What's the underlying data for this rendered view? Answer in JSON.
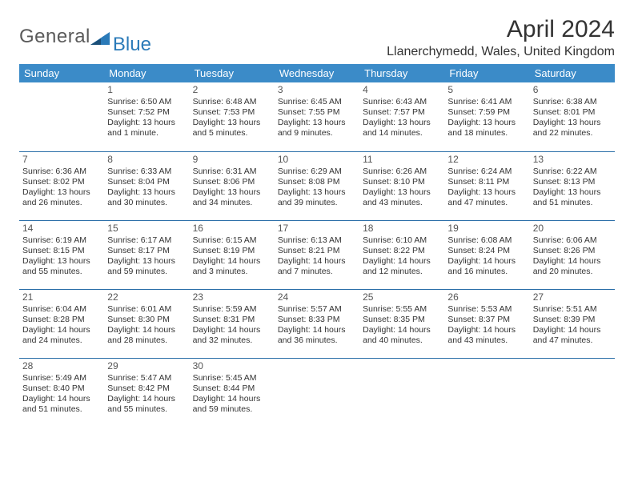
{
  "logo": {
    "part1": "General",
    "part2": "Blue"
  },
  "title": "April 2024",
  "location": "Llanerchymedd, Wales, United Kingdom",
  "colors": {
    "header_bg": "#3b8bc8",
    "header_text": "#ffffff",
    "row_border": "#2a6ea8",
    "text": "#333333",
    "logo_gray": "#5a5a5a",
    "logo_blue": "#2a7ab8"
  },
  "day_headers": [
    "Sunday",
    "Monday",
    "Tuesday",
    "Wednesday",
    "Thursday",
    "Friday",
    "Saturday"
  ],
  "weeks": [
    [
      null,
      {
        "n": "1",
        "sr": "Sunrise: 6:50 AM",
        "ss": "Sunset: 7:52 PM",
        "d1": "Daylight: 13 hours",
        "d2": "and 1 minute."
      },
      {
        "n": "2",
        "sr": "Sunrise: 6:48 AM",
        "ss": "Sunset: 7:53 PM",
        "d1": "Daylight: 13 hours",
        "d2": "and 5 minutes."
      },
      {
        "n": "3",
        "sr": "Sunrise: 6:45 AM",
        "ss": "Sunset: 7:55 PM",
        "d1": "Daylight: 13 hours",
        "d2": "and 9 minutes."
      },
      {
        "n": "4",
        "sr": "Sunrise: 6:43 AM",
        "ss": "Sunset: 7:57 PM",
        "d1": "Daylight: 13 hours",
        "d2": "and 14 minutes."
      },
      {
        "n": "5",
        "sr": "Sunrise: 6:41 AM",
        "ss": "Sunset: 7:59 PM",
        "d1": "Daylight: 13 hours",
        "d2": "and 18 minutes."
      },
      {
        "n": "6",
        "sr": "Sunrise: 6:38 AM",
        "ss": "Sunset: 8:01 PM",
        "d1": "Daylight: 13 hours",
        "d2": "and 22 minutes."
      }
    ],
    [
      {
        "n": "7",
        "sr": "Sunrise: 6:36 AM",
        "ss": "Sunset: 8:02 PM",
        "d1": "Daylight: 13 hours",
        "d2": "and 26 minutes."
      },
      {
        "n": "8",
        "sr": "Sunrise: 6:33 AM",
        "ss": "Sunset: 8:04 PM",
        "d1": "Daylight: 13 hours",
        "d2": "and 30 minutes."
      },
      {
        "n": "9",
        "sr": "Sunrise: 6:31 AM",
        "ss": "Sunset: 8:06 PM",
        "d1": "Daylight: 13 hours",
        "d2": "and 34 minutes."
      },
      {
        "n": "10",
        "sr": "Sunrise: 6:29 AM",
        "ss": "Sunset: 8:08 PM",
        "d1": "Daylight: 13 hours",
        "d2": "and 39 minutes."
      },
      {
        "n": "11",
        "sr": "Sunrise: 6:26 AM",
        "ss": "Sunset: 8:10 PM",
        "d1": "Daylight: 13 hours",
        "d2": "and 43 minutes."
      },
      {
        "n": "12",
        "sr": "Sunrise: 6:24 AM",
        "ss": "Sunset: 8:11 PM",
        "d1": "Daylight: 13 hours",
        "d2": "and 47 minutes."
      },
      {
        "n": "13",
        "sr": "Sunrise: 6:22 AM",
        "ss": "Sunset: 8:13 PM",
        "d1": "Daylight: 13 hours",
        "d2": "and 51 minutes."
      }
    ],
    [
      {
        "n": "14",
        "sr": "Sunrise: 6:19 AM",
        "ss": "Sunset: 8:15 PM",
        "d1": "Daylight: 13 hours",
        "d2": "and 55 minutes."
      },
      {
        "n": "15",
        "sr": "Sunrise: 6:17 AM",
        "ss": "Sunset: 8:17 PM",
        "d1": "Daylight: 13 hours",
        "d2": "and 59 minutes."
      },
      {
        "n": "16",
        "sr": "Sunrise: 6:15 AM",
        "ss": "Sunset: 8:19 PM",
        "d1": "Daylight: 14 hours",
        "d2": "and 3 minutes."
      },
      {
        "n": "17",
        "sr": "Sunrise: 6:13 AM",
        "ss": "Sunset: 8:21 PM",
        "d1": "Daylight: 14 hours",
        "d2": "and 7 minutes."
      },
      {
        "n": "18",
        "sr": "Sunrise: 6:10 AM",
        "ss": "Sunset: 8:22 PM",
        "d1": "Daylight: 14 hours",
        "d2": "and 12 minutes."
      },
      {
        "n": "19",
        "sr": "Sunrise: 6:08 AM",
        "ss": "Sunset: 8:24 PM",
        "d1": "Daylight: 14 hours",
        "d2": "and 16 minutes."
      },
      {
        "n": "20",
        "sr": "Sunrise: 6:06 AM",
        "ss": "Sunset: 8:26 PM",
        "d1": "Daylight: 14 hours",
        "d2": "and 20 minutes."
      }
    ],
    [
      {
        "n": "21",
        "sr": "Sunrise: 6:04 AM",
        "ss": "Sunset: 8:28 PM",
        "d1": "Daylight: 14 hours",
        "d2": "and 24 minutes."
      },
      {
        "n": "22",
        "sr": "Sunrise: 6:01 AM",
        "ss": "Sunset: 8:30 PM",
        "d1": "Daylight: 14 hours",
        "d2": "and 28 minutes."
      },
      {
        "n": "23",
        "sr": "Sunrise: 5:59 AM",
        "ss": "Sunset: 8:31 PM",
        "d1": "Daylight: 14 hours",
        "d2": "and 32 minutes."
      },
      {
        "n": "24",
        "sr": "Sunrise: 5:57 AM",
        "ss": "Sunset: 8:33 PM",
        "d1": "Daylight: 14 hours",
        "d2": "and 36 minutes."
      },
      {
        "n": "25",
        "sr": "Sunrise: 5:55 AM",
        "ss": "Sunset: 8:35 PM",
        "d1": "Daylight: 14 hours",
        "d2": "and 40 minutes."
      },
      {
        "n": "26",
        "sr": "Sunrise: 5:53 AM",
        "ss": "Sunset: 8:37 PM",
        "d1": "Daylight: 14 hours",
        "d2": "and 43 minutes."
      },
      {
        "n": "27",
        "sr": "Sunrise: 5:51 AM",
        "ss": "Sunset: 8:39 PM",
        "d1": "Daylight: 14 hours",
        "d2": "and 47 minutes."
      }
    ],
    [
      {
        "n": "28",
        "sr": "Sunrise: 5:49 AM",
        "ss": "Sunset: 8:40 PM",
        "d1": "Daylight: 14 hours",
        "d2": "and 51 minutes."
      },
      {
        "n": "29",
        "sr": "Sunrise: 5:47 AM",
        "ss": "Sunset: 8:42 PM",
        "d1": "Daylight: 14 hours",
        "d2": "and 55 minutes."
      },
      {
        "n": "30",
        "sr": "Sunrise: 5:45 AM",
        "ss": "Sunset: 8:44 PM",
        "d1": "Daylight: 14 hours",
        "d2": "and 59 minutes."
      },
      null,
      null,
      null,
      null
    ]
  ]
}
